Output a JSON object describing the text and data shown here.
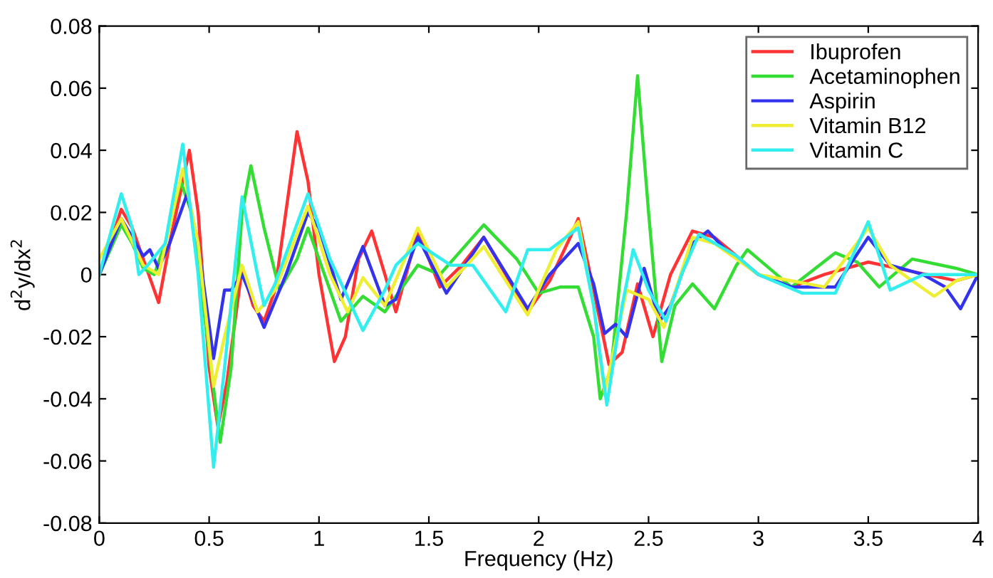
{
  "chart_data": {
    "type": "line",
    "xlabel": "Frequency (Hz)",
    "ylabel": "d$^{2}$y/dx$^{2}$",
    "xlim": [
      0,
      4
    ],
    "ylim": [
      -0.08,
      0.08
    ],
    "xticks": [
      0,
      0.5,
      1,
      1.5,
      2,
      2.5,
      3,
      3.5,
      4
    ],
    "yticks": [
      -0.08,
      -0.06,
      -0.04,
      -0.02,
      0,
      0.02,
      0.04,
      0.06,
      0.08
    ],
    "grid": false,
    "legend": "top right",
    "marker": "none",
    "line_style": "solid",
    "series": [
      {
        "name": "Ibuprofen",
        "color": "#ff3333",
        "x": [
          0,
          0.05,
          0.1,
          0.15,
          0.2,
          0.27,
          0.32,
          0.41,
          0.45,
          0.5,
          0.54,
          0.58,
          0.65,
          0.7,
          0.75,
          0.8,
          0.9,
          0.95,
          1.0,
          1.07,
          1.12,
          1.18,
          1.24,
          1.3,
          1.35,
          1.45,
          1.55,
          1.65,
          1.75,
          1.85,
          1.95,
          2.05,
          2.15,
          2.18,
          2.25,
          2.32,
          2.38,
          2.45,
          2.52,
          2.6,
          2.7,
          2.8,
          2.9,
          3.0,
          3.15,
          3.3,
          3.5,
          3.7,
          3.9,
          4.0
        ],
        "values": [
          0,
          0.01,
          0.021,
          0.015,
          0.005,
          -0.009,
          0.01,
          0.04,
          0.02,
          -0.03,
          -0.049,
          -0.035,
          0.002,
          -0.01,
          -0.015,
          -0.005,
          0.046,
          0.03,
          0.0,
          -0.028,
          -0.02,
          0.005,
          0.014,
          0.0,
          -0.012,
          0.014,
          -0.004,
          0.003,
          0.012,
          0.0,
          -0.012,
          -0.002,
          0.013,
          0.018,
          -0.005,
          -0.029,
          -0.025,
          -0.003,
          -0.02,
          0.0,
          0.014,
          0.012,
          0.006,
          0.0,
          -0.004,
          0.0,
          0.004,
          0.001,
          -0.002,
          0.0
        ]
      },
      {
        "name": "Acetaminophen",
        "color": "#33dd33",
        "x": [
          0,
          0.1,
          0.15,
          0.2,
          0.25,
          0.3,
          0.37,
          0.42,
          0.5,
          0.55,
          0.6,
          0.65,
          0.69,
          0.75,
          0.82,
          0.9,
          0.95,
          1.0,
          1.1,
          1.2,
          1.3,
          1.45,
          1.55,
          1.75,
          1.9,
          2.0,
          2.1,
          2.18,
          2.25,
          2.28,
          2.33,
          2.4,
          2.45,
          2.5,
          2.56,
          2.62,
          2.7,
          2.8,
          2.9,
          2.95,
          3.0,
          3.15,
          3.35,
          3.45,
          3.55,
          3.7,
          3.9,
          4.0
        ],
        "values": [
          0,
          0.016,
          0.01,
          0.002,
          0.0,
          0.01,
          0.03,
          0.02,
          -0.025,
          -0.054,
          -0.03,
          0.02,
          0.035,
          0.015,
          -0.005,
          0.005,
          0.015,
          0.005,
          -0.015,
          -0.007,
          -0.012,
          0.003,
          0.0,
          0.016,
          0.005,
          -0.006,
          -0.004,
          -0.004,
          -0.02,
          -0.04,
          -0.03,
          0.02,
          0.064,
          0.02,
          -0.028,
          -0.01,
          -0.003,
          -0.011,
          0.003,
          0.008,
          0.005,
          -0.004,
          0.007,
          0.004,
          -0.004,
          0.005,
          0.002,
          0.0
        ]
      },
      {
        "name": "Aspirin",
        "color": "#3333ee",
        "x": [
          0,
          0.1,
          0.2,
          0.23,
          0.27,
          0.32,
          0.4,
          0.45,
          0.52,
          0.57,
          0.6,
          0.65,
          0.75,
          0.85,
          0.95,
          1.0,
          1.1,
          1.2,
          1.3,
          1.35,
          1.45,
          1.58,
          1.75,
          1.95,
          2.05,
          2.18,
          2.25,
          2.3,
          2.35,
          2.4,
          2.48,
          2.55,
          2.6,
          2.7,
          2.77,
          2.85,
          3.0,
          3.15,
          3.35,
          3.5,
          3.6,
          3.75,
          3.85,
          3.92,
          4.0
        ],
        "values": [
          0,
          0.018,
          0.006,
          0.008,
          0.002,
          0.01,
          0.026,
          0.01,
          -0.027,
          -0.005,
          -0.005,
          0.0,
          -0.017,
          0.0,
          0.02,
          0.015,
          -0.008,
          0.009,
          -0.01,
          -0.008,
          0.012,
          -0.006,
          0.012,
          -0.011,
          0.0,
          0.01,
          -0.003,
          -0.019,
          -0.016,
          -0.02,
          0.002,
          -0.015,
          -0.01,
          0.01,
          0.014,
          0.008,
          0.0,
          -0.004,
          -0.004,
          0.012,
          0.003,
          0.0,
          -0.004,
          -0.011,
          0.0
        ]
      },
      {
        "name": "Vitamin B12",
        "color": "#eeee33",
        "x": [
          0,
          0.1,
          0.2,
          0.27,
          0.38,
          0.45,
          0.52,
          0.57,
          0.65,
          0.72,
          0.8,
          0.95,
          1.05,
          1.13,
          1.2,
          1.3,
          1.45,
          1.58,
          1.75,
          1.95,
          2.08,
          2.18,
          2.25,
          2.3,
          2.4,
          2.5,
          2.57,
          2.7,
          2.8,
          3.0,
          3.3,
          3.5,
          3.6,
          3.8,
          3.9,
          4.0
        ],
        "values": [
          0.005,
          0.018,
          0.003,
          0.0,
          0.034,
          0.01,
          -0.036,
          -0.02,
          0.003,
          -0.012,
          -0.005,
          0.022,
          0.0,
          -0.012,
          -0.001,
          -0.01,
          0.015,
          -0.004,
          0.009,
          -0.013,
          0.008,
          0.017,
          -0.01,
          -0.038,
          -0.005,
          -0.008,
          -0.017,
          0.012,
          0.01,
          0.0,
          -0.004,
          0.015,
          0.003,
          -0.007,
          -0.002,
          0.0
        ]
      },
      {
        "name": "Vitamin C",
        "color": "#33eeee",
        "x": [
          0,
          0.1,
          0.15,
          0.18,
          0.22,
          0.3,
          0.38,
          0.45,
          0.52,
          0.57,
          0.65,
          0.72,
          0.75,
          0.8,
          0.95,
          1.05,
          1.2,
          1.3,
          1.35,
          1.45,
          1.6,
          1.7,
          1.85,
          1.95,
          2.05,
          2.18,
          2.25,
          2.31,
          2.38,
          2.43,
          2.5,
          2.58,
          2.65,
          2.73,
          2.9,
          3.0,
          3.2,
          3.35,
          3.5,
          3.6,
          3.75,
          4.0
        ],
        "values": [
          0.0,
          0.026,
          0.015,
          0.0,
          0.003,
          0.01,
          0.042,
          0.0,
          -0.062,
          -0.03,
          0.025,
          0.0,
          -0.01,
          -0.003,
          0.026,
          0.005,
          -0.018,
          -0.005,
          0.003,
          0.01,
          0.003,
          0.003,
          -0.012,
          0.008,
          0.008,
          0.015,
          -0.01,
          -0.042,
          -0.01,
          0.008,
          -0.005,
          -0.015,
          0.0,
          0.013,
          0.006,
          0.0,
          -0.006,
          -0.006,
          0.017,
          -0.005,
          0.0,
          0.0
        ]
      }
    ]
  }
}
